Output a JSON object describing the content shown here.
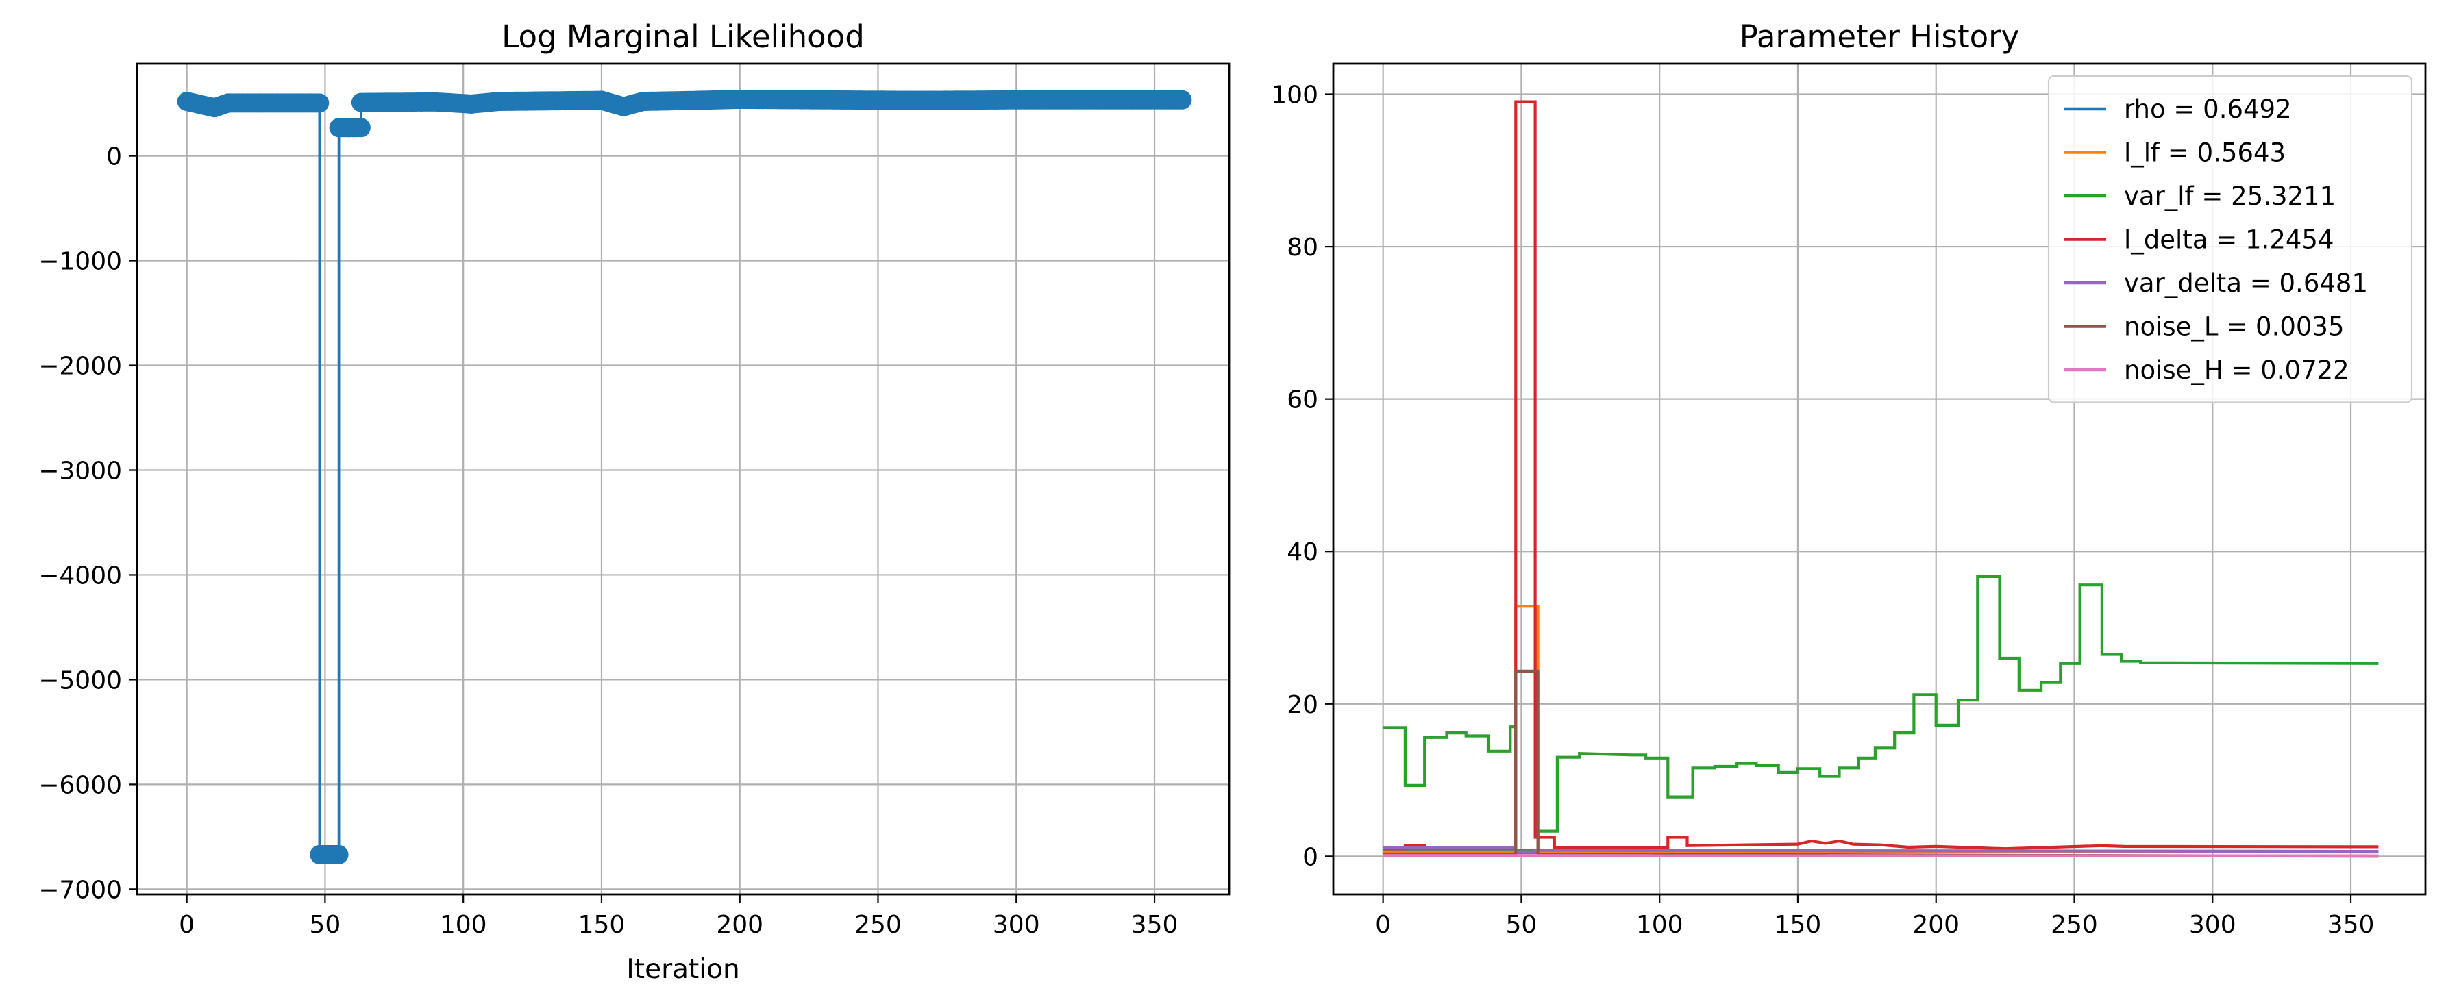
{
  "chart_data": [
    {
      "type": "line",
      "title": "Log Marginal Likelihood",
      "xlabel": "Iteration",
      "ylabel": "",
      "xlim": [
        -18,
        377
      ],
      "ylim": [
        -7050,
        880
      ],
      "xticks": [
        0,
        50,
        100,
        150,
        200,
        250,
        300,
        350
      ],
      "xtick_labels": [
        "0",
        "50",
        "100",
        "150",
        "200",
        "250",
        "300",
        "350"
      ],
      "yticks": [
        0,
        -1000,
        -2000,
        -3000,
        -4000,
        -5000,
        -6000,
        -7000
      ],
      "ytick_labels": [
        "0",
        "−1000",
        "−2000",
        "−3000",
        "−4000",
        "−5000",
        "−6000",
        "−7000"
      ],
      "grid": true,
      "marker": "o",
      "step": true,
      "series": [
        {
          "color": "#1f77b4",
          "points": [
            [
              0,
              520
            ],
            [
              10,
              460
            ],
            [
              15,
              505
            ],
            [
              48,
              505
            ],
            [
              48,
              -6670
            ],
            [
              55,
              -6670
            ],
            [
              55,
              270
            ],
            [
              63,
              270
            ],
            [
              63,
              510
            ],
            [
              90,
              515
            ],
            [
              103,
              495
            ],
            [
              113,
              520
            ],
            [
              150,
              530
            ],
            [
              158,
              470
            ],
            [
              165,
              520
            ],
            [
              185,
              530
            ],
            [
              200,
              540
            ],
            [
              260,
              530
            ],
            [
              270,
              530
            ],
            [
              300,
              535
            ],
            [
              360,
              535
            ]
          ]
        }
      ]
    },
    {
      "type": "line",
      "title": "Parameter History",
      "xlabel": "",
      "ylabel": "",
      "xlim": [
        -18,
        377
      ],
      "ylim": [
        -5,
        104
      ],
      "xticks": [
        0,
        50,
        100,
        150,
        200,
        250,
        300,
        350
      ],
      "xtick_labels": [
        "0",
        "50",
        "100",
        "150",
        "200",
        "250",
        "300",
        "350"
      ],
      "yticks": [
        0,
        20,
        40,
        60,
        80,
        100
      ],
      "ytick_labels": [
        "0",
        "20",
        "40",
        "60",
        "80",
        "100"
      ],
      "grid": true,
      "step": true,
      "legend": "top-right",
      "series": [
        {
          "name": "rho = 0.6492",
          "color": "#1f77b4",
          "points": [
            [
              0,
              0.8
            ],
            [
              48,
              0.8
            ],
            [
              48,
              0.5
            ],
            [
              55,
              0.5
            ],
            [
              55,
              0.7
            ],
            [
              360,
              0.65
            ]
          ]
        },
        {
          "name": "l_lf = 0.5643",
          "color": "#ff7f0e",
          "points": [
            [
              0,
              0.6
            ],
            [
              48,
              0.6
            ],
            [
              48,
              32.8
            ],
            [
              56,
              32.8
            ],
            [
              56,
              0.6
            ],
            [
              360,
              0.56
            ]
          ]
        },
        {
          "name": "var_lf = 25.3211",
          "color": "#2ca02c",
          "points": [
            [
              0,
              16.9
            ],
            [
              8,
              16.9
            ],
            [
              8,
              9.3
            ],
            [
              15,
              9.3
            ],
            [
              15,
              15.6
            ],
            [
              23,
              15.6
            ],
            [
              23,
              16.2
            ],
            [
              30,
              16.2
            ],
            [
              30,
              15.8
            ],
            [
              38,
              15.8
            ],
            [
              38,
              13.8
            ],
            [
              46,
              13.8
            ],
            [
              46,
              17.0
            ],
            [
              48,
              17.0
            ],
            [
              48,
              0.8
            ],
            [
              56,
              0.8
            ],
            [
              56,
              3.3
            ],
            [
              63,
              3.3
            ],
            [
              63,
              13.0
            ],
            [
              71,
              13.0
            ],
            [
              71,
              13.5
            ],
            [
              90,
              13.3
            ],
            [
              95,
              13.3
            ],
            [
              95,
              12.9
            ],
            [
              103,
              12.9
            ],
            [
              103,
              7.8
            ],
            [
              112,
              7.8
            ],
            [
              112,
              11.6
            ],
            [
              120,
              11.6
            ],
            [
              120,
              11.8
            ],
            [
              128,
              11.8
            ],
            [
              128,
              12.2
            ],
            [
              135,
              12.2
            ],
            [
              135,
              11.9
            ],
            [
              143,
              11.9
            ],
            [
              143,
              11.0
            ],
            [
              150,
              11.0
            ],
            [
              150,
              11.5
            ],
            [
              158,
              11.5
            ],
            [
              158,
              10.5
            ],
            [
              165,
              10.5
            ],
            [
              165,
              11.6
            ],
            [
              172,
              11.6
            ],
            [
              172,
              12.9
            ],
            [
              178,
              12.9
            ],
            [
              178,
              14.2
            ],
            [
              185,
              14.2
            ],
            [
              185,
              16.2
            ],
            [
              192,
              16.2
            ],
            [
              192,
              21.2
            ],
            [
              200,
              21.2
            ],
            [
              200,
              17.2
            ],
            [
              208,
              17.2
            ],
            [
              208,
              20.5
            ],
            [
              215,
              20.5
            ],
            [
              215,
              36.7
            ],
            [
              223,
              36.7
            ],
            [
              223,
              26.0
            ],
            [
              230,
              26.0
            ],
            [
              230,
              21.8
            ],
            [
              238,
              21.8
            ],
            [
              238,
              22.8
            ],
            [
              245,
              22.8
            ],
            [
              245,
              25.3
            ],
            [
              252,
              25.3
            ],
            [
              252,
              35.6
            ],
            [
              260,
              35.6
            ],
            [
              260,
              26.5
            ],
            [
              267,
              26.5
            ],
            [
              267,
              25.6
            ],
            [
              274,
              25.6
            ],
            [
              274,
              25.4
            ],
            [
              360,
              25.3
            ]
          ]
        },
        {
          "name": "l_delta = 1.2454",
          "color": "#d62728",
          "points": [
            [
              0,
              1.0
            ],
            [
              8,
              1.0
            ],
            [
              8,
              1.4
            ],
            [
              15,
              1.4
            ],
            [
              15,
              1.1
            ],
            [
              48,
              1.1
            ],
            [
              48,
              99.0
            ],
            [
              55,
              99.0
            ],
            [
              55,
              2.5
            ],
            [
              62,
              2.5
            ],
            [
              62,
              1.1
            ],
            [
              103,
              1.1
            ],
            [
              103,
              2.5
            ],
            [
              110,
              2.5
            ],
            [
              110,
              1.4
            ],
            [
              150,
              1.6
            ],
            [
              155,
              2.0
            ],
            [
              160,
              1.7
            ],
            [
              165,
              2.0
            ],
            [
              170,
              1.6
            ],
            [
              180,
              1.5
            ],
            [
              190,
              1.2
            ],
            [
              200,
              1.3
            ],
            [
              225,
              1.0
            ],
            [
              260,
              1.4
            ],
            [
              268,
              1.3
            ],
            [
              360,
              1.25
            ]
          ]
        },
        {
          "name": "var_delta = 0.6481",
          "color": "#9467bd",
          "points": [
            [
              0,
              1.1
            ],
            [
              48,
              1.1
            ],
            [
              48,
              0.6
            ],
            [
              55,
              0.6
            ],
            [
              55,
              0.8
            ],
            [
              360,
              0.65
            ]
          ]
        },
        {
          "name": "noise_L = 0.0035",
          "color": "#8c564b",
          "points": [
            [
              0,
              0.3
            ],
            [
              48,
              0.3
            ],
            [
              48,
              24.3
            ],
            [
              56,
              24.3
            ],
            [
              56,
              0.3
            ],
            [
              360,
              0.0035
            ]
          ]
        },
        {
          "name": "noise_H = 0.0722",
          "color": "#e377c2",
          "points": [
            [
              0,
              0.1
            ],
            [
              360,
              0.07
            ]
          ]
        }
      ]
    }
  ]
}
